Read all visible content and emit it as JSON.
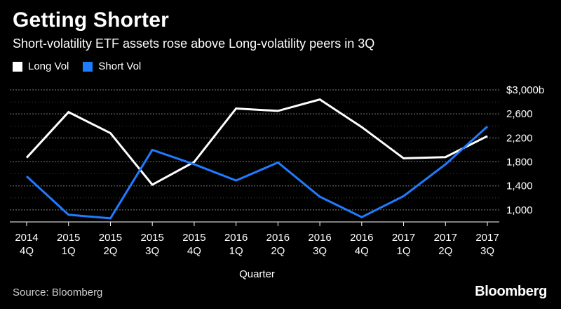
{
  "title": "Getting Shorter",
  "subtitle": "Short-volatility ETF assets rose above Long-volatility peers in 3Q",
  "source": "Source: Bloomberg",
  "brand": "Bloomberg",
  "colors": {
    "background": "#000000",
    "long_vol": "#ffffff",
    "short_vol": "#1f7bff",
    "grid": "#8a8a8a",
    "text": "#ffffff"
  },
  "chart_data": {
    "type": "line",
    "xlabel": "Quarter",
    "ylabel": "",
    "ylim": [
      800,
      3000
    ],
    "yticks": [
      1000,
      1400,
      1800,
      2200,
      2600,
      3000
    ],
    "ytick_labels": [
      "1,000",
      "1,400",
      "1,800",
      "2,200",
      "2,600",
      "$3,000b"
    ],
    "grid": true,
    "legend_position": "top-left",
    "categories": [
      [
        "2014",
        "4Q"
      ],
      [
        "2015",
        "1Q"
      ],
      [
        "2015",
        "2Q"
      ],
      [
        "2015",
        "3Q"
      ],
      [
        "2015",
        "4Q"
      ],
      [
        "2016",
        "1Q"
      ],
      [
        "2016",
        "2Q"
      ],
      [
        "2016",
        "3Q"
      ],
      [
        "2016",
        "4Q"
      ],
      [
        "2017",
        "1Q"
      ],
      [
        "2017",
        "2Q"
      ],
      [
        "2017",
        "3Q"
      ]
    ],
    "series": [
      {
        "name": "Long Vol",
        "color": "#ffffff",
        "values": [
          1870,
          2630,
          2280,
          1420,
          1800,
          2690,
          2650,
          2840,
          2380,
          1860,
          1880,
          2230
        ]
      },
      {
        "name": "Short Vol",
        "color": "#1f7bff",
        "values": [
          1560,
          920,
          860,
          2000,
          1760,
          1490,
          1790,
          1220,
          880,
          1230,
          1760,
          2390
        ]
      }
    ]
  }
}
